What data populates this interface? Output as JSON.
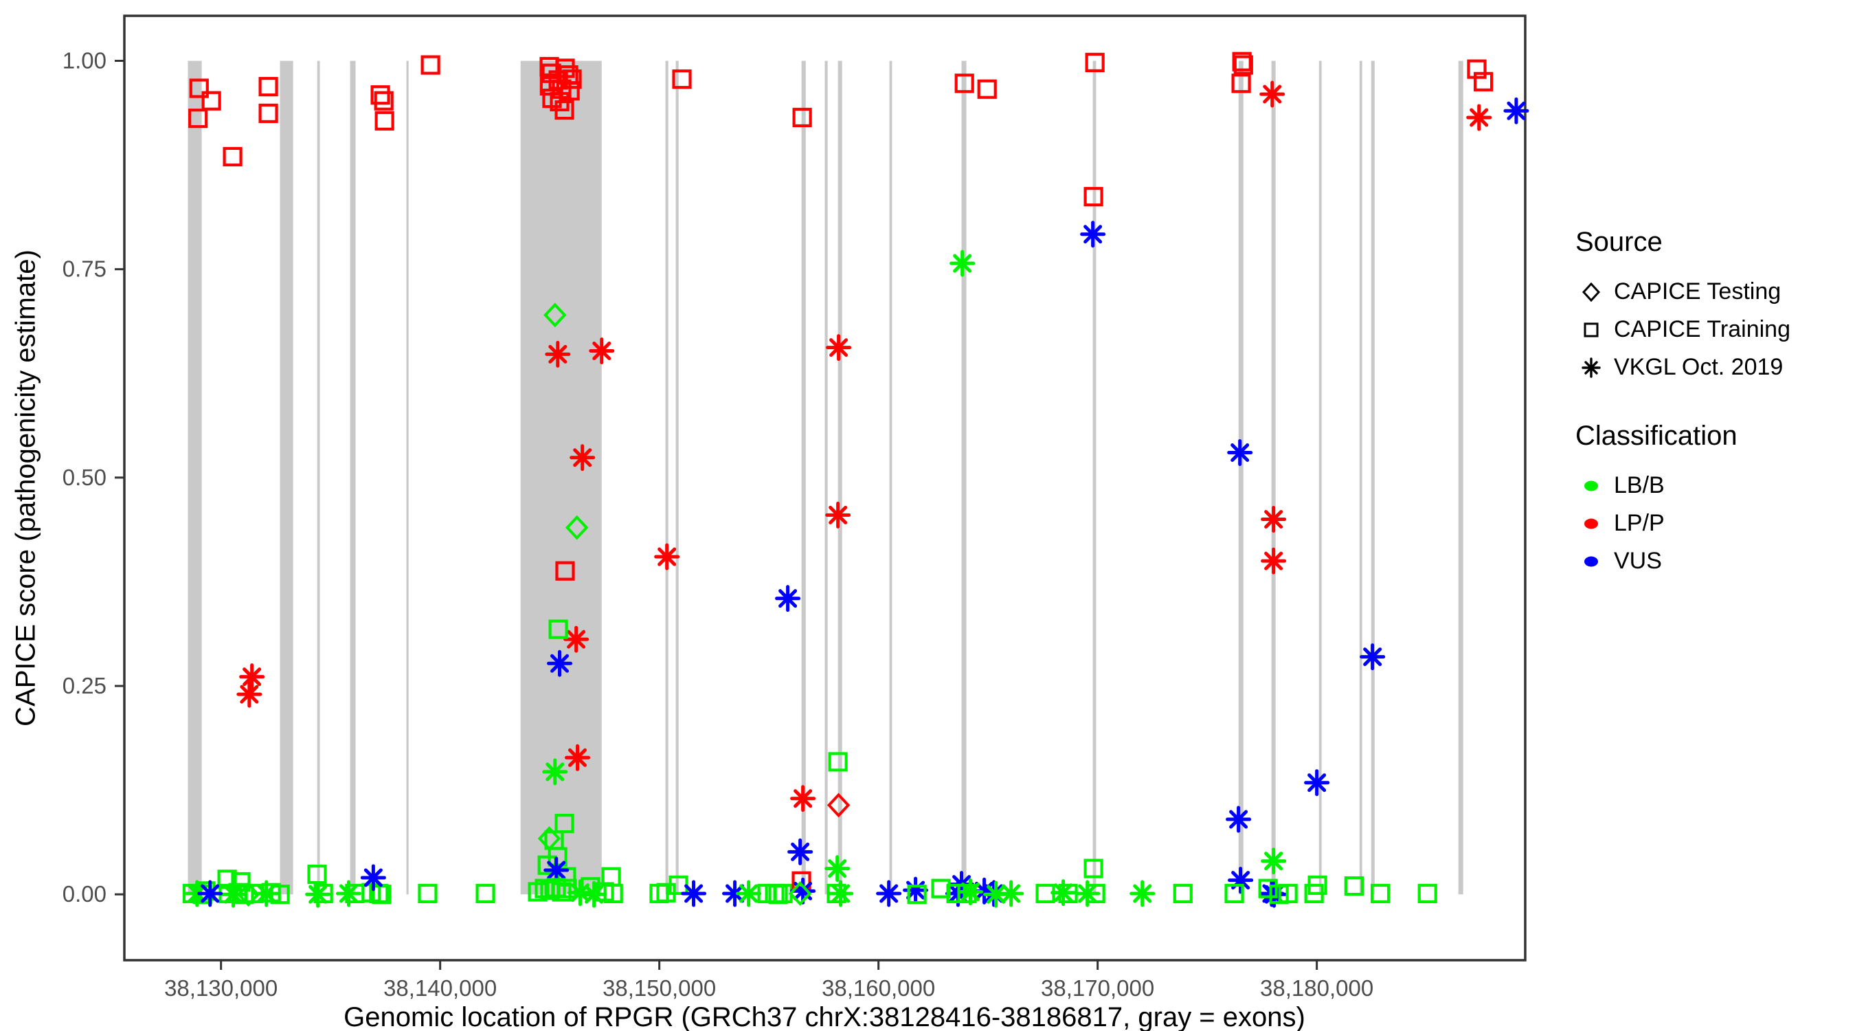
{
  "figure": {
    "background": "#ffffff",
    "panel_border_color": "#333333",
    "tick_label_color": "#4d4d4d",
    "tick_mark_color": "#333333"
  },
  "legend": {
    "source": {
      "title": "Source",
      "items": [
        {
          "label": "CAPICE Testing",
          "marker": "di"
        },
        {
          "label": "CAPICE Training",
          "marker": "sq"
        },
        {
          "label": "VKGL Oct. 2019",
          "marker": "as"
        }
      ]
    },
    "classification": {
      "title": "Classification",
      "items": [
        {
          "label": "LB/B",
          "color": "#00f000"
        },
        {
          "label": "LP/P",
          "color": "#ff0000"
        },
        {
          "label": "VUS",
          "color": "#0000ff"
        }
      ]
    }
  },
  "chart_data": {
    "type": "scatter",
    "title": "",
    "xlabel": "Genomic location of RPGR (GRCh37 chrX:38128416-38186817, gray = exons)",
    "ylabel": "CAPICE score (pathogenicity estimate)",
    "x_domain": [
      38125590,
      38189510
    ],
    "y_domain": [
      -0.079,
      1.054
    ],
    "grid": false,
    "legend_position": "right",
    "x_ticks": [
      {
        "value": 38130000,
        "label": "38,130,000"
      },
      {
        "value": 38140000,
        "label": "38,140,000"
      },
      {
        "value": 38150000,
        "label": "38,150,000"
      },
      {
        "value": 38160000,
        "label": "38,160,000"
      },
      {
        "value": 38170000,
        "label": "38,170,000"
      },
      {
        "value": 38180000,
        "label": "38,180,000"
      }
    ],
    "y_ticks": [
      {
        "value": 0.0,
        "label": "0.00"
      },
      {
        "value": 0.25,
        "label": "0.25"
      },
      {
        "value": 0.5,
        "label": "0.50"
      },
      {
        "value": 0.75,
        "label": "0.75"
      },
      {
        "value": 1.0,
        "label": "1.00"
      }
    ],
    "exon_color": "#c9c9c9",
    "exons": [
      [
        38128490,
        38129120
      ],
      [
        38132690,
        38133290
      ],
      [
        38134390,
        38134510
      ],
      [
        38135890,
        38136140
      ],
      [
        38138460,
        38138560
      ],
      [
        38143670,
        38147370
      ],
      [
        38150280,
        38150410
      ],
      [
        38150750,
        38150880
      ],
      [
        38156490,
        38156680
      ],
      [
        38157550,
        38157680
      ],
      [
        38158150,
        38158340
      ],
      [
        38160500,
        38160620
      ],
      [
        38163790,
        38164010
      ],
      [
        38169780,
        38169930
      ],
      [
        38176430,
        38176650
      ],
      [
        38177930,
        38178120
      ],
      [
        38180100,
        38180220
      ],
      [
        38181950,
        38182070
      ],
      [
        38182480,
        38182640
      ],
      [
        38186460,
        38186680
      ]
    ],
    "class_colors": {
      "LBB": "#00f000",
      "LPP": "#ff0000",
      "VUS": "#0000ff"
    },
    "marker_shapes": {
      "sq": "open-square",
      "di": "open-diamond",
      "as": "asterisk"
    },
    "points": [
      [
        38129000,
        0.967,
        "sq",
        "LPP"
      ],
      [
        38129560,
        0.952,
        "sq",
        "LPP"
      ],
      [
        38128950,
        0.931,
        "sq",
        "LPP"
      ],
      [
        38130530,
        0.885,
        "sq",
        "LPP"
      ],
      [
        38132160,
        0.969,
        "sq",
        "LPP"
      ],
      [
        38132160,
        0.937,
        "sq",
        "LPP"
      ],
      [
        38137270,
        0.959,
        "sq",
        "LPP"
      ],
      [
        38137430,
        0.952,
        "sq",
        "LPP"
      ],
      [
        38137460,
        0.928,
        "sq",
        "LPP"
      ],
      [
        38139560,
        0.995,
        "sq",
        "LPP"
      ],
      [
        38131410,
        0.261,
        "as",
        "LPP"
      ],
      [
        38131290,
        0.24,
        "as",
        "LPP"
      ],
      [
        38129310,
        0.004,
        "sq",
        "LBB"
      ],
      [
        38128690,
        0.001,
        "sq",
        "LBB"
      ],
      [
        38129155,
        0.0,
        "sq",
        "LBB"
      ],
      [
        38130280,
        0.018,
        "sq",
        "LBB"
      ],
      [
        38130905,
        0.015,
        "sq",
        "LBB"
      ],
      [
        38130340,
        0.001,
        "sq",
        "LBB"
      ],
      [
        38130780,
        0.002,
        "sq",
        "LBB"
      ],
      [
        38131060,
        0.0,
        "sq",
        "LBB"
      ],
      [
        38131500,
        0.001,
        "sq",
        "LBB"
      ],
      [
        38132290,
        0.002,
        "sq",
        "LBB"
      ],
      [
        38132695,
        0.0,
        "sq",
        "LBB"
      ],
      [
        38134385,
        0.024,
        "sq",
        "LBB"
      ],
      [
        38134670,
        0.001,
        "sq",
        "LBB"
      ],
      [
        38136105,
        0.001,
        "sq",
        "LBB"
      ],
      [
        38136855,
        0.002,
        "sq",
        "LBB"
      ],
      [
        38137200,
        0.001,
        "sq",
        "LBB"
      ],
      [
        38137330,
        0.0,
        "sq",
        "LBB"
      ],
      [
        38139430,
        0.001,
        "sq",
        "LBB"
      ],
      [
        38142065,
        0.001,
        "sq",
        "LBB"
      ],
      [
        38128905,
        0.001,
        "as",
        "LBB"
      ],
      [
        38130560,
        0.0,
        "as",
        "LBB"
      ],
      [
        38132070,
        0.001,
        "as",
        "LBB"
      ],
      [
        38134420,
        0.0,
        "as",
        "LBB"
      ],
      [
        38135825,
        0.001,
        "as",
        "LBB"
      ],
      [
        38129500,
        0.001,
        "as",
        "VUS"
      ],
      [
        38136950,
        0.02,
        "as",
        "VUS"
      ],
      [
        38131250,
        0.0,
        "di",
        "LBB"
      ],
      [
        38144980,
        0.993,
        "sq",
        "LPP"
      ],
      [
        38145075,
        0.985,
        "sq",
        "LPP"
      ],
      [
        38145700,
        0.991,
        "sq",
        "LPP"
      ],
      [
        38145860,
        0.983,
        "sq",
        "LPP"
      ],
      [
        38146015,
        0.978,
        "sq",
        "LPP"
      ],
      [
        38145390,
        0.977,
        "sq",
        "LPP"
      ],
      [
        38144990,
        0.97,
        "sq",
        "LPP"
      ],
      [
        38145545,
        0.966,
        "sq",
        "LPP"
      ],
      [
        38145925,
        0.964,
        "sq",
        "LPP"
      ],
      [
        38145105,
        0.955,
        "sq",
        "LPP"
      ],
      [
        38145450,
        0.951,
        "sq",
        "LPP"
      ],
      [
        38145670,
        0.941,
        "sq",
        "LPP"
      ],
      [
        38151030,
        0.978,
        "sq",
        "LPP"
      ],
      [
        38145240,
        0.695,
        "di",
        "LBB"
      ],
      [
        38146240,
        0.44,
        "di",
        "LBB"
      ],
      [
        38144980,
        0.067,
        "di",
        "LBB"
      ],
      [
        38145365,
        0.648,
        "as",
        "LPP"
      ],
      [
        38147370,
        0.652,
        "as",
        "LPP"
      ],
      [
        38146490,
        0.524,
        "as",
        "LPP"
      ],
      [
        38146205,
        0.306,
        "as",
        "LPP"
      ],
      [
        38146265,
        0.164,
        "as",
        "LPP"
      ],
      [
        38145700,
        0.388,
        "sq",
        "LPP"
      ],
      [
        38145390,
        0.318,
        "sq",
        "LBB"
      ],
      [
        38145670,
        0.085,
        "sq",
        "LBB"
      ],
      [
        38145200,
        0.065,
        "sq",
        "LBB"
      ],
      [
        38145360,
        0.045,
        "sq",
        "LBB"
      ],
      [
        38144890,
        0.035,
        "sq",
        "LBB"
      ],
      [
        38145760,
        0.021,
        "sq",
        "LBB"
      ],
      [
        38145450,
        0.277,
        "as",
        "VUS"
      ],
      [
        38145300,
        0.029,
        "as",
        "VUS"
      ],
      [
        38145240,
        0.147,
        "as",
        "LBB"
      ],
      [
        38146390,
        0.002,
        "as",
        "LBB"
      ],
      [
        38147020,
        0.0,
        "as",
        "LBB"
      ],
      [
        38144450,
        0.003,
        "sq",
        "LBB"
      ],
      [
        38144760,
        0.007,
        "sq",
        "LBB"
      ],
      [
        38145010,
        0.005,
        "sq",
        "LBB"
      ],
      [
        38145295,
        0.008,
        "sq",
        "LBB"
      ],
      [
        38145545,
        0.003,
        "sq",
        "LBB"
      ],
      [
        38145795,
        0.007,
        "sq",
        "LBB"
      ],
      [
        38146860,
        0.009,
        "sq",
        "LBB"
      ],
      [
        38147490,
        0.003,
        "sq",
        "LBB"
      ],
      [
        38147900,
        0.001,
        "sq",
        "LBB"
      ],
      [
        38147805,
        0.021,
        "sq",
        "LBB"
      ],
      [
        38150345,
        0.405,
        "as",
        "LPP"
      ],
      [
        38149995,
        0.001,
        "sq",
        "LBB"
      ],
      [
        38150310,
        0.002,
        "sq",
        "LBB"
      ],
      [
        38150875,
        0.011,
        "sq",
        "LBB"
      ],
      [
        38154920,
        0.001,
        "sq",
        "LBB"
      ],
      [
        38155265,
        0.001,
        "sq",
        "LBB"
      ],
      [
        38155640,
        0.001,
        "sq",
        "LBB"
      ],
      [
        38155420,
        0.0,
        "sq",
        "LBB"
      ],
      [
        38151565,
        0.001,
        "as",
        "VUS"
      ],
      [
        38153445,
        0.001,
        "as",
        "VUS"
      ],
      [
        38154075,
        0.001,
        "as",
        "LBB"
      ],
      [
        38156520,
        0.932,
        "sq",
        "LPP"
      ],
      [
        38156485,
        0.016,
        "sq",
        "LPP"
      ],
      [
        38156550,
        0.115,
        "as",
        "LPP"
      ],
      [
        38155860,
        0.355,
        "as",
        "VUS"
      ],
      [
        38156425,
        0.051,
        "as",
        "VUS"
      ],
      [
        38156550,
        0.004,
        "as",
        "VUS"
      ],
      [
        38156425,
        0.001,
        "di",
        "LBB"
      ],
      [
        38158180,
        0.656,
        "as",
        "LPP"
      ],
      [
        38158150,
        0.455,
        "as",
        "LPP"
      ],
      [
        38158150,
        0.159,
        "sq",
        "LBB"
      ],
      [
        38158085,
        0.001,
        "sq",
        "LBB"
      ],
      [
        38158180,
        0.107,
        "di",
        "LPP"
      ],
      [
        38158120,
        0.031,
        "as",
        "LBB"
      ],
      [
        38158275,
        0.001,
        "as",
        "LBB"
      ],
      [
        38160470,
        0.001,
        "as",
        "VUS"
      ],
      [
        38161690,
        0.005,
        "as",
        "VUS"
      ],
      [
        38163790,
        0.012,
        "as",
        "VUS"
      ],
      [
        38163630,
        0.001,
        "as",
        "VUS"
      ],
      [
        38164825,
        0.004,
        "as",
        "VUS"
      ],
      [
        38165265,
        0.001,
        "as",
        "VUS"
      ],
      [
        38161755,
        0.0,
        "sq",
        "LBB"
      ],
      [
        38162850,
        0.007,
        "sq",
        "LBB"
      ],
      [
        38163540,
        0.001,
        "sq",
        "LBB"
      ],
      [
        38164040,
        0.001,
        "sq",
        "LBB"
      ],
      [
        38167615,
        0.001,
        "sq",
        "LBB"
      ],
      [
        38168650,
        0.001,
        "sq",
        "LBB"
      ],
      [
        38173890,
        0.001,
        "sq",
        "LBB"
      ],
      [
        38164195,
        0.003,
        "as",
        "LBB"
      ],
      [
        38165360,
        0.0,
        "as",
        "LBB"
      ],
      [
        38166050,
        0.001,
        "as",
        "LBB"
      ],
      [
        38168430,
        0.002,
        "as",
        "LBB"
      ],
      [
        38169530,
        0.001,
        "as",
        "LBB"
      ],
      [
        38172040,
        0.001,
        "as",
        "LBB"
      ],
      [
        38163920,
        0.973,
        "sq",
        "LPP"
      ],
      [
        38164955,
        0.966,
        "sq",
        "LPP"
      ],
      [
        38163825,
        0.757,
        "as",
        "LBB"
      ],
      [
        38169875,
        0.998,
        "sq",
        "LPP"
      ],
      [
        38169810,
        0.837,
        "sq",
        "LPP"
      ],
      [
        38169780,
        0.792,
        "as",
        "VUS"
      ],
      [
        38169905,
        0.001,
        "sq",
        "LBB"
      ],
      [
        38169810,
        0.031,
        "sq",
        "LBB"
      ],
      [
        38176585,
        0.999,
        "sq",
        "LPP"
      ],
      [
        38176650,
        0.995,
        "sq",
        "LPP"
      ],
      [
        38176550,
        0.973,
        "sq",
        "LPP"
      ],
      [
        38177965,
        0.96,
        "as",
        "LPP"
      ],
      [
        38178025,
        0.45,
        "as",
        "LPP"
      ],
      [
        38178025,
        0.4,
        "as",
        "LPP"
      ],
      [
        38176490,
        0.53,
        "as",
        "VUS"
      ],
      [
        38176425,
        0.09,
        "as",
        "VUS"
      ],
      [
        38176520,
        0.017,
        "as",
        "VUS"
      ],
      [
        38177940,
        0.001,
        "as",
        "VUS"
      ],
      [
        38178050,
        0.0,
        "as",
        "VUS"
      ],
      [
        38178025,
        0.04,
        "as",
        "LBB"
      ],
      [
        38176235,
        0.001,
        "sq",
        "LBB"
      ],
      [
        38177775,
        0.007,
        "sq",
        "LBB"
      ],
      [
        38178275,
        0.0,
        "sq",
        "LBB"
      ],
      [
        38178685,
        0.001,
        "sq",
        "LBB"
      ],
      [
        38180000,
        0.134,
        "as",
        "VUS"
      ],
      [
        38182540,
        0.285,
        "as",
        "VUS"
      ],
      [
        38189100,
        0.94,
        "as",
        "VUS"
      ],
      [
        38180030,
        0.011,
        "sq",
        "LBB"
      ],
      [
        38179875,
        0.001,
        "sq",
        "LBB"
      ],
      [
        38181700,
        0.01,
        "sq",
        "LBB"
      ],
      [
        38182900,
        0.001,
        "sq",
        "LBB"
      ],
      [
        38185050,
        0.001,
        "sq",
        "LBB"
      ],
      [
        38187300,
        0.99,
        "sq",
        "LPP"
      ],
      [
        38187600,
        0.975,
        "sq",
        "LPP"
      ],
      [
        38187400,
        0.932,
        "as",
        "LPP"
      ]
    ]
  }
}
